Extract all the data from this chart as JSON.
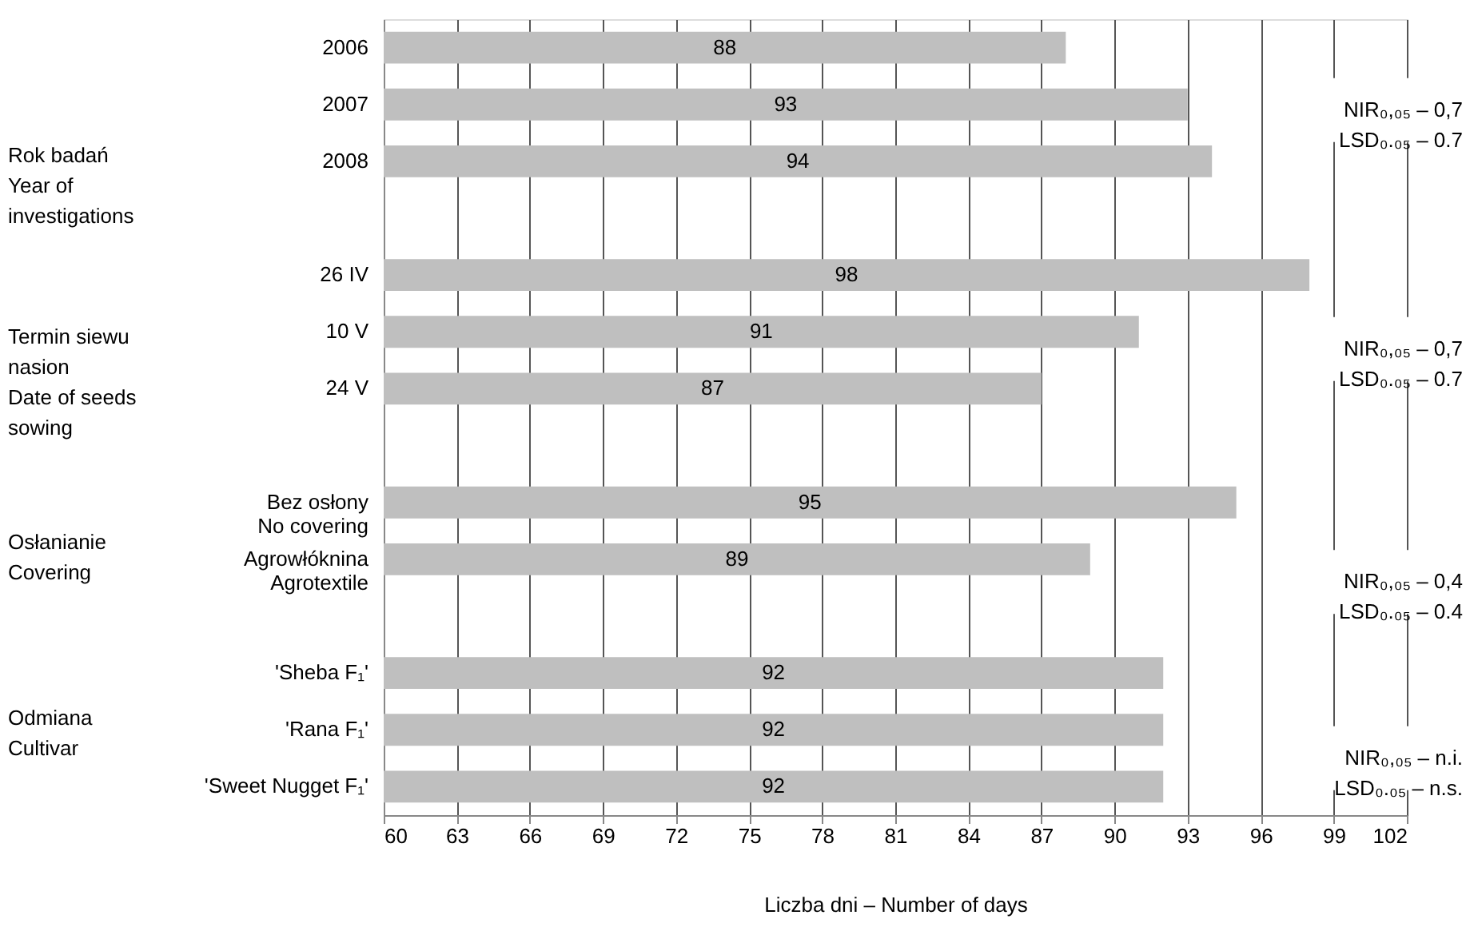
{
  "chart_data": {
    "type": "bar",
    "orientation": "horizontal",
    "xlabel": "Liczba dni – Number of days",
    "categories": [
      "2006",
      "2007",
      "2008",
      null,
      "26 IV",
      "10 V",
      "24 V",
      null,
      "Bez osłony\nNo covering",
      "Agrowłóknina\nAgrotextile",
      null,
      "'Sheba F₁'",
      "'Rana F₁'",
      "'Sweet Nugget F₁'"
    ],
    "values": [
      88,
      93,
      94,
      null,
      98,
      91,
      87,
      null,
      95,
      89,
      null,
      92,
      92,
      92
    ],
    "color": "#bfbfbf",
    "data_labels": true,
    "xlim": [
      60,
      102
    ],
    "xticks": [
      60,
      63,
      66,
      69,
      72,
      75,
      78,
      81,
      84,
      87,
      90,
      93,
      96,
      99,
      102
    ],
    "grid": "x",
    "annotations": [
      "Rok badań\nYear of\ninvestigations",
      "Termin siewu\nnasion\nDate of seeds\nsowing",
      "Osłanianie\nCovering",
      "Odmiana\nCultivar",
      "NIR₀,₀₅ – 0,7\nLSD₀.₀₅ – 0.7",
      "NIR₀,₀₅ – 0,7\nLSD₀.₀₅ – 0.7",
      "NIR₀,₀₅ – 0,4\nLSD₀.₀₅ – 0.4",
      "NIR₀,₀₅ – n.i.\nLSD₀.₀₅ – n.s."
    ]
  }
}
